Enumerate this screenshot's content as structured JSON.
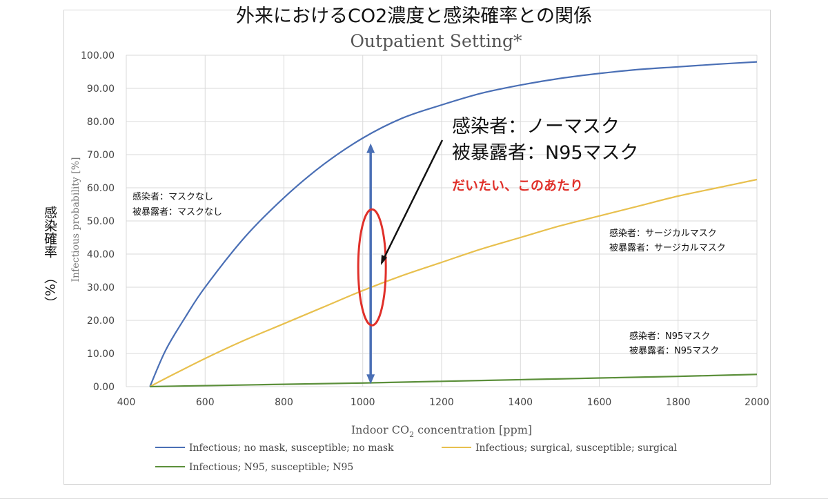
{
  "chart_data": {
    "type": "line",
    "title": "外来におけるCO2濃度と感染確率との関係",
    "subtitle": "Outpatient Setting*",
    "xlabel": "Indoor CO",
    "xlabel_sub": "2",
    "xlabel_unit": " concentration [ppm]",
    "ylabel": "Infectious probability [%]",
    "ylabel_jp": "感染確率",
    "ylabel_jp_unit": "（%）",
    "xlim": [
      400,
      2000
    ],
    "ylim": [
      0,
      100
    ],
    "x_ticks": [
      "400",
      "600",
      "800",
      "1000",
      "1200",
      "1400",
      "1600",
      "1800",
      "2000"
    ],
    "y_ticks": [
      "0.00",
      "10.00",
      "20.00",
      "30.00",
      "40.00",
      "50.00",
      "60.00",
      "70.00",
      "80.00",
      "90.00",
      "100.00"
    ],
    "grid": true,
    "legend_position": "bottom",
    "series": [
      {
        "name": "Infectious; no mask, susceptible; no mask",
        "color": "#4a6fb5",
        "x": [
          460,
          500,
          550,
          600,
          700,
          800,
          900,
          1000,
          1100,
          1200,
          1300,
          1400,
          1500,
          1600,
          1700,
          1800,
          1900,
          2000
        ],
        "y": [
          0,
          11,
          21,
          30,
          45,
          57,
          67,
          75,
          81,
          85,
          88.5,
          91,
          93,
          94.5,
          95.7,
          96.5,
          97.3,
          98
        ]
      },
      {
        "name": "Infectious; surgical, susceptible; surgical",
        "color": "#e8c04e",
        "x": [
          460,
          500,
          600,
          700,
          800,
          900,
          1000,
          1100,
          1200,
          1300,
          1400,
          1500,
          1600,
          1700,
          1800,
          1900,
          2000
        ],
        "y": [
          0,
          2.5,
          8.5,
          14,
          19,
          24,
          29,
          33.5,
          37.5,
          41.5,
          45,
          48.5,
          51.5,
          54.5,
          57.5,
          60,
          62.5
        ]
      },
      {
        "name": "Infectious;  N95, susceptible; N95",
        "color": "#5b8f3a",
        "x": [
          460,
          600,
          800,
          1000,
          1200,
          1400,
          1600,
          1800,
          2000
        ],
        "y": [
          0,
          0.3,
          0.7,
          1.1,
          1.6,
          2.1,
          2.6,
          3.1,
          3.7
        ]
      }
    ],
    "annotations": {
      "no_mask": [
        "感染者：マスクなし",
        "被暴露者：マスクなし"
      ],
      "surgical": [
        "感染者：サージカルマスク",
        "被暴露者：サージカルマスク"
      ],
      "n95": [
        "感染者：N95マスク",
        "被暴露者：N95マスク"
      ],
      "callout": [
        "感染者：ノーマスク",
        "被暴露者：N95マスク"
      ],
      "callout_red": "だいたい、このあたり",
      "marker_x": 1020,
      "marker_range": [
        1.2,
        73
      ],
      "ellipse_center_y": 36,
      "callout_color": "#e0302a",
      "marker_color": "#4a6fb5"
    }
  }
}
